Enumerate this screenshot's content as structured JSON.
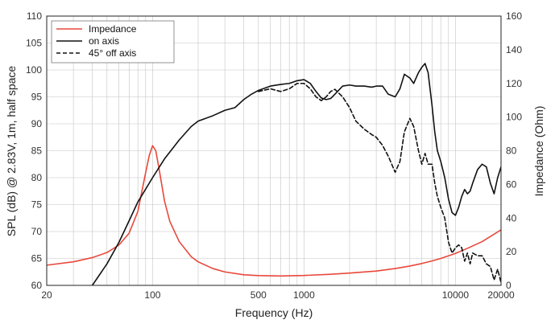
{
  "chart_data": {
    "type": "line",
    "xlabel": "Frequency (Hz)",
    "ylabel": "SPL (dB) @ 2.83V, 1m, half space",
    "y2label": "Impedance (Ohm)",
    "x_scale": "log",
    "xlim": [
      20,
      20000
    ],
    "ylim": [
      60,
      110
    ],
    "y2lim": [
      0,
      160
    ],
    "grid": true,
    "legend_position": "top-left",
    "x_ticks": [
      {
        "value": 20,
        "label": "20"
      },
      {
        "value": 100,
        "label": "100"
      },
      {
        "value": 500,
        "label": "500"
      },
      {
        "value": 1000,
        "label": "1000"
      },
      {
        "value": 10000,
        "label": "10000"
      },
      {
        "value": 20000,
        "label": "20000"
      }
    ],
    "y_ticks": [
      60,
      65,
      70,
      75,
      80,
      85,
      90,
      95,
      100,
      105,
      110
    ],
    "y2_ticks": [
      0,
      20,
      40,
      60,
      80,
      100,
      120,
      140,
      160
    ],
    "series": [
      {
        "name": "Impedance",
        "axis": "right",
        "color": "#e8483a",
        "style": "solid",
        "x": [
          20,
          30,
          40,
          50,
          60,
          70,
          80,
          90,
          95,
          100,
          105,
          110,
          120,
          130,
          150,
          180,
          200,
          250,
          300,
          400,
          500,
          700,
          1000,
          1500,
          2000,
          3000,
          4000,
          5000,
          6000,
          7000,
          8000,
          10000,
          12000,
          15000,
          20000
        ],
        "values": [
          12,
          14,
          16.5,
          19.5,
          24,
          31,
          44,
          67,
          77,
          83,
          80,
          70,
          50,
          38,
          26,
          17,
          14,
          10,
          8,
          6.3,
          5.8,
          5.6,
          5.9,
          6.6,
          7.3,
          8.5,
          10,
          11.5,
          13,
          14.5,
          16,
          19,
          22,
          26,
          33
        ]
      },
      {
        "name": "on axis",
        "axis": "left",
        "color": "#111111",
        "style": "solid",
        "x": [
          40,
          50,
          60,
          70,
          80,
          100,
          120,
          150,
          180,
          200,
          250,
          300,
          350,
          400,
          450,
          500,
          600,
          700,
          800,
          900,
          1000,
          1100,
          1200,
          1300,
          1400,
          1500,
          1600,
          1800,
          2000,
          2200,
          2500,
          2800,
          3000,
          3300,
          3600,
          4000,
          4300,
          4600,
          5000,
          5300,
          5700,
          6000,
          6300,
          6600,
          7000,
          7300,
          7600,
          8000,
          8500,
          9000,
          9500,
          10000,
          10500,
          11000,
          11500,
          12000,
          12500,
          13000,
          14000,
          15000,
          16000,
          17000,
          18000,
          19000,
          20000
        ],
        "values": [
          60,
          64,
          68,
          72,
          75.5,
          80,
          83.5,
          87,
          89.5,
          90.5,
          91.5,
          92.5,
          93,
          94.5,
          95.5,
          96.2,
          97,
          97.3,
          97.5,
          98,
          98.2,
          97.5,
          96,
          94.8,
          94.5,
          94.7,
          95.5,
          97,
          97.2,
          97,
          97,
          96.8,
          97,
          97,
          95.5,
          95,
          96.5,
          99.2,
          98.5,
          97.5,
          99.5,
          100.5,
          101.2,
          99.5,
          93.5,
          88.5,
          85,
          83,
          80,
          76,
          73.5,
          73,
          74.5,
          76.5,
          77.8,
          77,
          77.5,
          79,
          81.5,
          82.5,
          82,
          79,
          77,
          80,
          82
        ]
      },
      {
        "name": "45° off axis",
        "axis": "left",
        "color": "#111111",
        "style": "dashed",
        "x": [
          500,
          600,
          700,
          800,
          900,
          1000,
          1100,
          1200,
          1300,
          1400,
          1500,
          1600,
          1800,
          2000,
          2200,
          2500,
          2800,
          3000,
          3300,
          3600,
          4000,
          4300,
          4600,
          5000,
          5300,
          5700,
          6000,
          6300,
          6600,
          7000,
          7300,
          7600,
          8000,
          8500,
          9000,
          9500,
          10000,
          10500,
          11000,
          11500,
          12000,
          12500,
          13000,
          14000,
          15000,
          16000,
          17000,
          18000,
          19000,
          20000
        ],
        "values": [
          96,
          96.5,
          96,
          96.5,
          97.5,
          97.5,
          96.5,
          95,
          94.3,
          95,
          96,
          96.4,
          95,
          93,
          90.5,
          89,
          88,
          87.5,
          86,
          84,
          81,
          83,
          88.5,
          91,
          89.5,
          85,
          82.5,
          84.5,
          82.5,
          82.5,
          79,
          76.5,
          74.5,
          72.5,
          68,
          66,
          67,
          67.5,
          67,
          64.5,
          66,
          64,
          66,
          65.5,
          65.5,
          64,
          63.5,
          61,
          63,
          60.5
        ]
      }
    ]
  }
}
